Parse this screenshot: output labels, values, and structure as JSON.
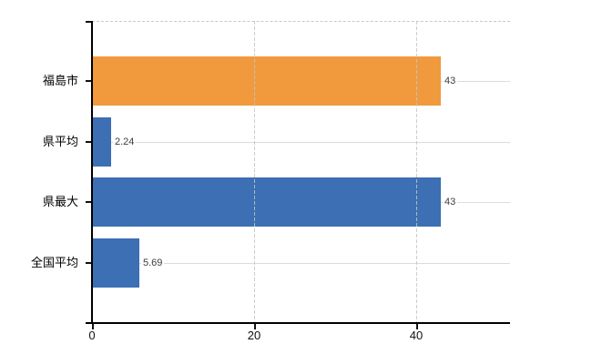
{
  "chart_data": {
    "type": "bar",
    "orientation": "horizontal",
    "title": "",
    "categories": [
      "福島市",
      "県平均",
      "県最大",
      "全国平均"
    ],
    "values": [
      43,
      2.24,
      43,
      5.69
    ],
    "value_labels": [
      "43",
      "2.24",
      "43",
      "5.69"
    ],
    "bar_colors": [
      "#F09A3D",
      "#3C6FB3",
      "#3C6FB3",
      "#3C6FB3"
    ],
    "highlight_color": "#F09A3D",
    "default_color": "#3C6FB3",
    "x_tick_labels": [
      "0",
      "20",
      "40"
    ],
    "x_tick_values": [
      0,
      20,
      40
    ],
    "xlim": [
      0,
      51.6
    ],
    "grid": true,
    "legend_position": "none",
    "axis_color": "#000000",
    "h_gridline_color": "#d9ded8",
    "v_gridline_color": "#c3c6c3",
    "value_label_color": "#3c3c3c"
  }
}
